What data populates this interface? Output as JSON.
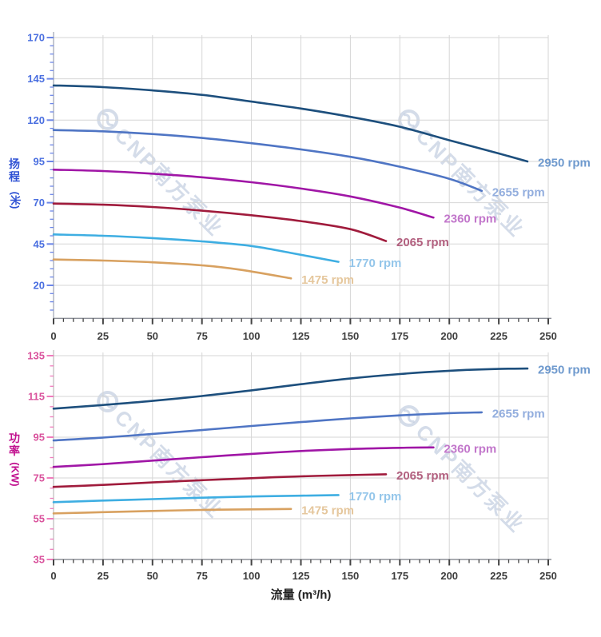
{
  "watermark": {
    "text": "CNP南方泵业"
  },
  "chart_data": [
    {
      "type": "line",
      "title": "",
      "ylabel": "扬程 (米)",
      "ylabel_main": "扬程",
      "ylabel_unit": "(米)",
      "xlabel": "",
      "xlim": [
        0,
        250
      ],
      "ylim": [
        0,
        173
      ],
      "grid": true,
      "legend_position": "curve-end-labels",
      "x_major_ticks": [
        0,
        25,
        50,
        75,
        100,
        125,
        150,
        175,
        200,
        225,
        250
      ],
      "y_major_ticks": [
        20,
        45,
        70,
        95,
        120,
        145,
        170
      ],
      "minor_tick_step": 5,
      "colors": {
        "grid": "#d6d6d6",
        "axis": "#aab1bd",
        "y_tick": "#6c86e8",
        "y_tick_label": "#4a6fe0",
        "x_tick": "#444444",
        "x_tick_label": "#3d3d3d"
      },
      "series": [
        {
          "name": "2950 rpm",
          "color": "#1d4f7d",
          "label_color": "#6f9ace",
          "points": [
            [
              0,
              141
            ],
            [
              25,
              140
            ],
            [
              50,
              138
            ],
            [
              75,
              135.3
            ],
            [
              100,
              131.2
            ],
            [
              125,
              127
            ],
            [
              150,
              122
            ],
            [
              175,
              116
            ],
            [
              200,
              107.8
            ],
            [
              225,
              99.8
            ],
            [
              239.5,
              95
            ]
          ]
        },
        {
          "name": "2655 rpm",
          "color": "#4f75c4",
          "label_color": "#93aede",
          "points": [
            [
              0,
              114
            ],
            [
              25,
              113.2
            ],
            [
              50,
              111.6
            ],
            [
              75,
              109.2
            ],
            [
              100,
              106
            ],
            [
              125,
              102.3
            ],
            [
              150,
              97.8
            ],
            [
              175,
              91.8
            ],
            [
              200,
              84.5
            ],
            [
              216.4,
              77.2
            ]
          ]
        },
        {
          "name": "2360 rpm",
          "color": "#a016a6",
          "label_color": "#c277cb",
          "points": [
            [
              0,
              90
            ],
            [
              25,
              89.2
            ],
            [
              50,
              87.6
            ],
            [
              75,
              85.4
            ],
            [
              100,
              82.4
            ],
            [
              125,
              78.6
            ],
            [
              150,
              73.8
            ],
            [
              175,
              67
            ],
            [
              192,
              61
            ]
          ]
        },
        {
          "name": "2065 rpm",
          "color": "#a01b3c",
          "label_color": "#b2607f",
          "points": [
            [
              0,
              69.5
            ],
            [
              25,
              68.8
            ],
            [
              50,
              67.4
            ],
            [
              75,
              65.2
            ],
            [
              100,
              62.4
            ],
            [
              125,
              58.9
            ],
            [
              150,
              54
            ],
            [
              168,
              46.8
            ]
          ]
        },
        {
          "name": "1770 rpm",
          "color": "#3eaee2",
          "label_color": "#94c6ea",
          "points": [
            [
              0,
              50.8
            ],
            [
              25,
              50
            ],
            [
              50,
              48.6
            ],
            [
              75,
              46.6
            ],
            [
              100,
              43.8
            ],
            [
              120,
              39.6
            ],
            [
              144,
              34.2
            ]
          ]
        },
        {
          "name": "1475 rpm",
          "color": "#d8a160",
          "label_color": "#e5c79d",
          "points": [
            [
              0,
              35.6
            ],
            [
              25,
              35
            ],
            [
              50,
              33.9
            ],
            [
              75,
              32.1
            ],
            [
              95,
              29.3
            ],
            [
              120,
              24.2
            ]
          ]
        }
      ]
    },
    {
      "type": "line",
      "title": "",
      "ylabel": "功率 (KW)",
      "ylabel_main": "功率",
      "ylabel_unit": "(KW)",
      "xlabel": "流量 (m³/h)",
      "xlim": [
        0,
        250
      ],
      "ylim": [
        35,
        138
      ],
      "grid": true,
      "legend_position": "curve-end-labels",
      "x_major_ticks": [
        0,
        25,
        50,
        75,
        100,
        125,
        150,
        175,
        200,
        225,
        250
      ],
      "y_major_ticks": [
        35,
        55,
        75,
        95,
        115,
        135
      ],
      "minor_tick_step": 5,
      "colors": {
        "grid": "#d6d6d6",
        "axis": "#c4c4c4",
        "y_tick": "#ef7cbc",
        "y_tick_label": "#d9529c",
        "x_tick": "#444444",
        "x_tick_label": "#3d3d3d"
      },
      "series": [
        {
          "name": "2950 rpm",
          "color": "#1d4f7d",
          "label_color": "#6f9ace",
          "points": [
            [
              0,
              109
            ],
            [
              25,
              110.8
            ],
            [
              50,
              112.8
            ],
            [
              75,
              115.2
            ],
            [
              100,
              118
            ],
            [
              125,
              121
            ],
            [
              150,
              123.8
            ],
            [
              175,
              126
            ],
            [
              200,
              127.6
            ],
            [
              225,
              128.5
            ],
            [
              239.5,
              128.7
            ]
          ]
        },
        {
          "name": "2655 rpm",
          "color": "#4f75c4",
          "label_color": "#93aede",
          "points": [
            [
              0,
              93.4
            ],
            [
              25,
              94.8
            ],
            [
              50,
              96.6
            ],
            [
              75,
              98.5
            ],
            [
              100,
              100.5
            ],
            [
              125,
              102.4
            ],
            [
              150,
              104.2
            ],
            [
              175,
              105.7
            ],
            [
              200,
              106.8
            ],
            [
              216.4,
              107.2
            ]
          ]
        },
        {
          "name": "2360 rpm",
          "color": "#a016a6",
          "label_color": "#c277cb",
          "points": [
            [
              0,
              80.4
            ],
            [
              25,
              81.8
            ],
            [
              50,
              83.5
            ],
            [
              75,
              85.2
            ],
            [
              100,
              86.8
            ],
            [
              125,
              88.2
            ],
            [
              150,
              89.2
            ],
            [
              175,
              89.8
            ],
            [
              192,
              90
            ]
          ]
        },
        {
          "name": "2065 rpm",
          "color": "#a01b3c",
          "label_color": "#b2607f",
          "points": [
            [
              0,
              70.6
            ],
            [
              25,
              71.6
            ],
            [
              50,
              72.8
            ],
            [
              75,
              73.9
            ],
            [
              100,
              74.9
            ],
            [
              125,
              75.8
            ],
            [
              150,
              76.4
            ],
            [
              168,
              76.8
            ]
          ]
        },
        {
          "name": "1770 rpm",
          "color": "#3eaee2",
          "label_color": "#94c6ea",
          "points": [
            [
              0,
              63.1
            ],
            [
              25,
              63.9
            ],
            [
              50,
              64.6
            ],
            [
              75,
              65.3
            ],
            [
              100,
              65.9
            ],
            [
              125,
              66.3
            ],
            [
              144,
              66.6
            ]
          ]
        },
        {
          "name": "1475 rpm",
          "color": "#d8a160",
          "label_color": "#e5c79d",
          "points": [
            [
              0,
              57.6
            ],
            [
              25,
              58.2
            ],
            [
              50,
              58.8
            ],
            [
              75,
              59.3
            ],
            [
              100,
              59.6
            ],
            [
              120,
              59.8
            ]
          ]
        }
      ]
    }
  ]
}
